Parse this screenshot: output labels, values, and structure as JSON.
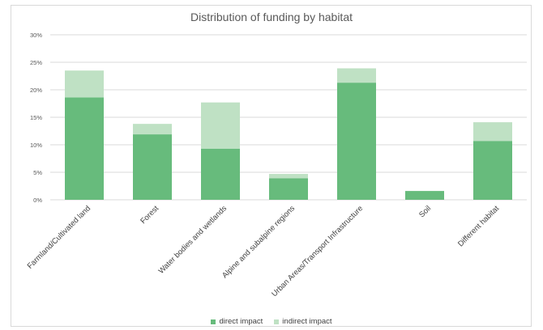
{
  "chart_data": {
    "type": "bar",
    "stacked": true,
    "title": "Distribution of funding by habitat",
    "categories": [
      "Farmland/Cultivated land",
      "Forest",
      "Water bodies and wetlands",
      "Alpine and subalpine regions",
      "Urban Areas/Transport Infrastructure",
      "Soil",
      "Different habitat"
    ],
    "series": [
      {
        "name": "direct impact",
        "color": "#67bb7c",
        "values": [
          18.6,
          11.9,
          9.3,
          3.9,
          21.3,
          1.6,
          10.7
        ]
      },
      {
        "name": "indirect impact",
        "color": "#bfe1c4",
        "values": [
          4.9,
          1.9,
          8.4,
          0.8,
          2.6,
          0.0,
          3.4
        ]
      }
    ],
    "yticks": [
      "0%",
      "5%",
      "10%",
      "15%",
      "20%",
      "25%",
      "30%"
    ],
    "ylim": [
      0,
      30
    ],
    "xlabel": "",
    "ylabel": "",
    "grid": true,
    "legend_position": "bottom"
  }
}
